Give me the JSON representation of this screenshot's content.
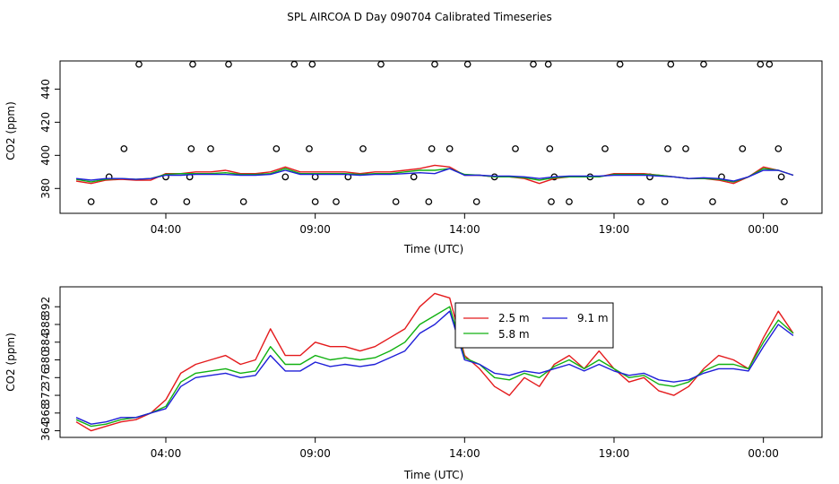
{
  "title": "SPL AIRCOA D  Day 090704  Calibrated Timeseries",
  "colors": {
    "axis": "#000000",
    "series_2_5m": "#e41a1c",
    "series_5_8m": "#11b111",
    "series_9_1m": "#1f1fd8",
    "qc_marker": "#000000"
  },
  "chart_data": [
    {
      "type": "line",
      "title": "SPL AIRCOA D  Day 090704  Calibrated Timeseries",
      "xlabel": "Time (UTC)",
      "ylabel": "CO2 (ppm)",
      "xlim": [
        0.0,
        24.0
      ],
      "ylim": [
        365.0,
        457.0
      ],
      "x_ticks": [
        3,
        8,
        13,
        18,
        23
      ],
      "x_tick_labels": [
        "04:00",
        "09:00",
        "14:00",
        "19:00",
        "00:00"
      ],
      "y_ticks": [
        380,
        400,
        420,
        440
      ],
      "y_tick_labels": [
        "380",
        "400",
        "420",
        "440"
      ],
      "grid": false,
      "legend": "none",
      "series": [
        {
          "name": "2.5 m",
          "color": "#e41a1c",
          "x": [
            0,
            0.5,
            1,
            1.5,
            2,
            2.5,
            3,
            3.5,
            4,
            4.5,
            5,
            5.5,
            6,
            6.5,
            7,
            7.5,
            8,
            8.5,
            9,
            9.5,
            10,
            10.5,
            11,
            11.5,
            12,
            12.5,
            13,
            13.5,
            14,
            14.5,
            15,
            15.5,
            16,
            16.5,
            17,
            17.5,
            18,
            18.5,
            19,
            19.5,
            20,
            20.5,
            21,
            21.5,
            22,
            22.5,
            23,
            23.5,
            24
          ],
          "values": [
            384.5,
            383,
            385,
            385.5,
            385,
            385,
            389,
            389,
            390,
            390,
            391,
            389,
            389,
            390,
            393,
            390,
            390,
            390,
            390,
            389,
            390,
            390,
            391,
            392,
            394,
            393,
            388,
            388,
            387,
            387,
            386,
            383,
            386,
            387,
            387,
            387,
            389,
            389,
            389,
            388,
            387,
            386,
            386,
            385,
            383,
            387,
            393,
            391,
            388
          ]
        },
        {
          "name": "5.8 m",
          "color": "#11b111",
          "x": [
            0,
            0.5,
            1,
            1.5,
            2,
            2.5,
            3,
            3.5,
            4,
            4.5,
            5,
            5.5,
            6,
            6.5,
            7,
            7.5,
            8,
            8.5,
            9,
            9.5,
            10,
            10.5,
            11,
            11.5,
            12,
            12.5,
            13,
            13.5,
            14,
            14.5,
            15,
            15.5,
            16,
            16.5,
            17,
            17.5,
            18,
            18.5,
            19,
            19.5,
            20,
            20.5,
            21,
            21.5,
            22,
            22.5,
            23,
            23.5,
            24
          ],
          "values": [
            385.5,
            384,
            385.5,
            386,
            385.5,
            386,
            388.5,
            389,
            389,
            389,
            389.5,
            388.5,
            388.5,
            389,
            392,
            389,
            389,
            389,
            389,
            388.5,
            389,
            389,
            390,
            391,
            391,
            392,
            388.5,
            388,
            387,
            387,
            386.5,
            385,
            386.5,
            387,
            387,
            387,
            388.5,
            388.5,
            388.5,
            388,
            387,
            386,
            386,
            385.5,
            384,
            387,
            392,
            391,
            388
          ]
        },
        {
          "name": "9.1 m",
          "color": "#1f1fd8",
          "x": [
            0,
            0.5,
            1,
            1.5,
            2,
            2.5,
            3,
            3.5,
            4,
            4.5,
            5,
            5.5,
            6,
            6.5,
            7,
            7.5,
            8,
            8.5,
            9,
            9.5,
            10,
            10.5,
            11,
            11.5,
            12,
            12.5,
            13,
            13.5,
            14,
            14.5,
            15,
            15.5,
            16,
            16.5,
            17,
            17.5,
            18,
            18.5,
            19,
            19.5,
            20,
            20.5,
            21,
            21.5,
            22,
            22.5,
            23,
            23.5,
            24
          ],
          "values": [
            386,
            385,
            386,
            386,
            385.5,
            386,
            388,
            388,
            388.5,
            388.5,
            388.5,
            388,
            388,
            388.5,
            391,
            388.5,
            388.5,
            388.5,
            388.5,
            388,
            388.5,
            388.5,
            389,
            389.5,
            389,
            392,
            388,
            388,
            387.5,
            387.5,
            387,
            386,
            387,
            387.5,
            387.5,
            387.5,
            388,
            388,
            388,
            387.5,
            387,
            386,
            386.5,
            386,
            384.5,
            387,
            391,
            391,
            388
          ]
        }
      ],
      "qc_markers": {
        "label": "o",
        "points": [
          {
            "x": 0.5,
            "y": 372
          },
          {
            "x": 1.1,
            "y": 387
          },
          {
            "x": 1.6,
            "y": 404
          },
          {
            "x": 2.1,
            "y": 455
          },
          {
            "x": 2.6,
            "y": 372
          },
          {
            "x": 3.0,
            "y": 387
          },
          {
            "x": 3.7,
            "y": 372
          },
          {
            "x": 3.8,
            "y": 387
          },
          {
            "x": 3.85,
            "y": 404
          },
          {
            "x": 3.9,
            "y": 455
          },
          {
            "x": 4.5,
            "y": 404
          },
          {
            "x": 5.1,
            "y": 455
          },
          {
            "x": 5.6,
            "y": 372
          },
          {
            "x": 6.7,
            "y": 404
          },
          {
            "x": 7.0,
            "y": 387
          },
          {
            "x": 7.3,
            "y": 455
          },
          {
            "x": 7.8,
            "y": 404
          },
          {
            "x": 7.9,
            "y": 455
          },
          {
            "x": 8.0,
            "y": 387
          },
          {
            "x": 8.0,
            "y": 372
          },
          {
            "x": 8.7,
            "y": 372
          },
          {
            "x": 9.1,
            "y": 387
          },
          {
            "x": 9.6,
            "y": 404
          },
          {
            "x": 10.2,
            "y": 455
          },
          {
            "x": 10.7,
            "y": 372
          },
          {
            "x": 11.3,
            "y": 387
          },
          {
            "x": 11.8,
            "y": 372
          },
          {
            "x": 11.9,
            "y": 404
          },
          {
            "x": 12.0,
            "y": 455
          },
          {
            "x": 12.5,
            "y": 404
          },
          {
            "x": 13.1,
            "y": 455
          },
          {
            "x": 13.4,
            "y": 372
          },
          {
            "x": 14.0,
            "y": 387
          },
          {
            "x": 14.7,
            "y": 404
          },
          {
            "x": 15.3,
            "y": 455
          },
          {
            "x": 15.8,
            "y": 455
          },
          {
            "x": 15.85,
            "y": 404
          },
          {
            "x": 15.9,
            "y": 372
          },
          {
            "x": 16.0,
            "y": 387
          },
          {
            "x": 16.5,
            "y": 372
          },
          {
            "x": 17.2,
            "y": 387
          },
          {
            "x": 17.7,
            "y": 404
          },
          {
            "x": 18.2,
            "y": 455
          },
          {
            "x": 18.9,
            "y": 372
          },
          {
            "x": 19.2,
            "y": 387
          },
          {
            "x": 19.7,
            "y": 372
          },
          {
            "x": 19.8,
            "y": 404
          },
          {
            "x": 19.9,
            "y": 455
          },
          {
            "x": 20.4,
            "y": 404
          },
          {
            "x": 21.0,
            "y": 455
          },
          {
            "x": 21.3,
            "y": 372
          },
          {
            "x": 21.6,
            "y": 387
          },
          {
            "x": 22.3,
            "y": 404
          },
          {
            "x": 22.9,
            "y": 455
          },
          {
            "x": 23.2,
            "y": 455
          },
          {
            "x": 23.5,
            "y": 404
          },
          {
            "x": 23.6,
            "y": 387
          },
          {
            "x": 23.7,
            "y": 372
          }
        ]
      }
    },
    {
      "type": "line",
      "title": "",
      "xlabel": "Time (UTC)",
      "ylabel": "CO2 (ppm)",
      "xlim": [
        0.0,
        24.0
      ],
      "ylim": [
        362.5,
        396.5
      ],
      "x_ticks": [
        3,
        8,
        13,
        18,
        23
      ],
      "x_tick_labels": [
        "04:00",
        "09:00",
        "14:00",
        "19:00",
        "00:00"
      ],
      "y_ticks": [
        364,
        368,
        372,
        376,
        380,
        384,
        388,
        392
      ],
      "y_tick_labels": [
        "364",
        "368",
        "372",
        "376",
        "380",
        "384",
        "388",
        "392"
      ],
      "grid": false,
      "legend": "top-center",
      "legend_entries": [
        "2.5 m",
        "5.8 m",
        "9.1 m"
      ],
      "series": [
        {
          "name": "2.5 m",
          "color": "#e41a1c",
          "x": [
            0,
            0.5,
            1,
            1.5,
            2,
            2.5,
            3,
            3.5,
            4,
            4.5,
            5,
            5.5,
            6,
            6.5,
            7,
            7.5,
            8,
            8.5,
            9,
            9.5,
            10,
            10.5,
            11,
            11.5,
            12,
            12.5,
            13,
            13.5,
            14,
            14.5,
            15,
            15.5,
            16,
            16.5,
            17,
            17.5,
            18,
            18.5,
            19,
            19.5,
            20,
            20.5,
            21,
            21.5,
            22,
            22.5,
            23,
            23.5,
            24
          ],
          "values": [
            366,
            364,
            365,
            366,
            366.5,
            368,
            371,
            377,
            379,
            380,
            381,
            379,
            380,
            387,
            381,
            381,
            384,
            383,
            383,
            382,
            383,
            385,
            387,
            392,
            395,
            394,
            381,
            378,
            374,
            372,
            376,
            374,
            379,
            381,
            378,
            382,
            378,
            375,
            376,
            373,
            372,
            374,
            378,
            381,
            380,
            378,
            385,
            391,
            386
          ]
        },
        {
          "name": "5.8 m",
          "color": "#11b111",
          "x": [
            0,
            0.5,
            1,
            1.5,
            2,
            2.5,
            3,
            3.5,
            4,
            4.5,
            5,
            5.5,
            6,
            6.5,
            7,
            7.5,
            8,
            8.5,
            9,
            9.5,
            10,
            10.5,
            11,
            11.5,
            12,
            12.5,
            13,
            13.5,
            14,
            14.5,
            15,
            15.5,
            16,
            16.5,
            17,
            17.5,
            18,
            18.5,
            19,
            19.5,
            20,
            20.5,
            21,
            21.5,
            22,
            22.5,
            23,
            23.5,
            24
          ],
          "values": [
            366.5,
            365,
            365.5,
            366.5,
            367,
            368,
            369.5,
            375,
            377,
            377.5,
            378,
            377,
            377.5,
            383,
            379,
            379,
            381,
            380,
            380.5,
            380,
            380.5,
            382,
            384,
            388,
            390,
            392,
            380.5,
            379,
            376,
            375.5,
            377,
            376,
            378.5,
            380,
            378,
            380,
            378,
            376,
            376.5,
            374.5,
            374,
            375,
            377.5,
            379,
            379,
            378,
            384,
            389,
            386
          ]
        },
        {
          "name": "9.1 m",
          "color": "#1f1fd8",
          "x": [
            0,
            0.5,
            1,
            1.5,
            2,
            2.5,
            3,
            3.5,
            4,
            4.5,
            5,
            5.5,
            6,
            6.5,
            7,
            7.5,
            8,
            8.5,
            9,
            9.5,
            10,
            10.5,
            11,
            11.5,
            12,
            12.5,
            13,
            13.5,
            14,
            14.5,
            15,
            15.5,
            16,
            16.5,
            17,
            17.5,
            18,
            18.5,
            19,
            19.5,
            20,
            20.5,
            21,
            21.5,
            22,
            22.5,
            23,
            23.5,
            24
          ],
          "values": [
            367,
            365.5,
            366,
            367,
            367,
            368,
            369,
            374,
            376,
            376.5,
            377,
            376,
            376.5,
            381,
            377.5,
            377.5,
            379.5,
            378.5,
            379,
            378.5,
            379,
            380.5,
            382,
            386,
            388,
            391,
            380,
            379,
            377,
            376.5,
            377.5,
            377,
            378,
            379,
            377.5,
            379,
            377.5,
            376.5,
            377,
            375.5,
            375,
            375.5,
            377,
            378,
            378,
            377.5,
            383,
            388,
            385.5
          ]
        }
      ]
    }
  ]
}
